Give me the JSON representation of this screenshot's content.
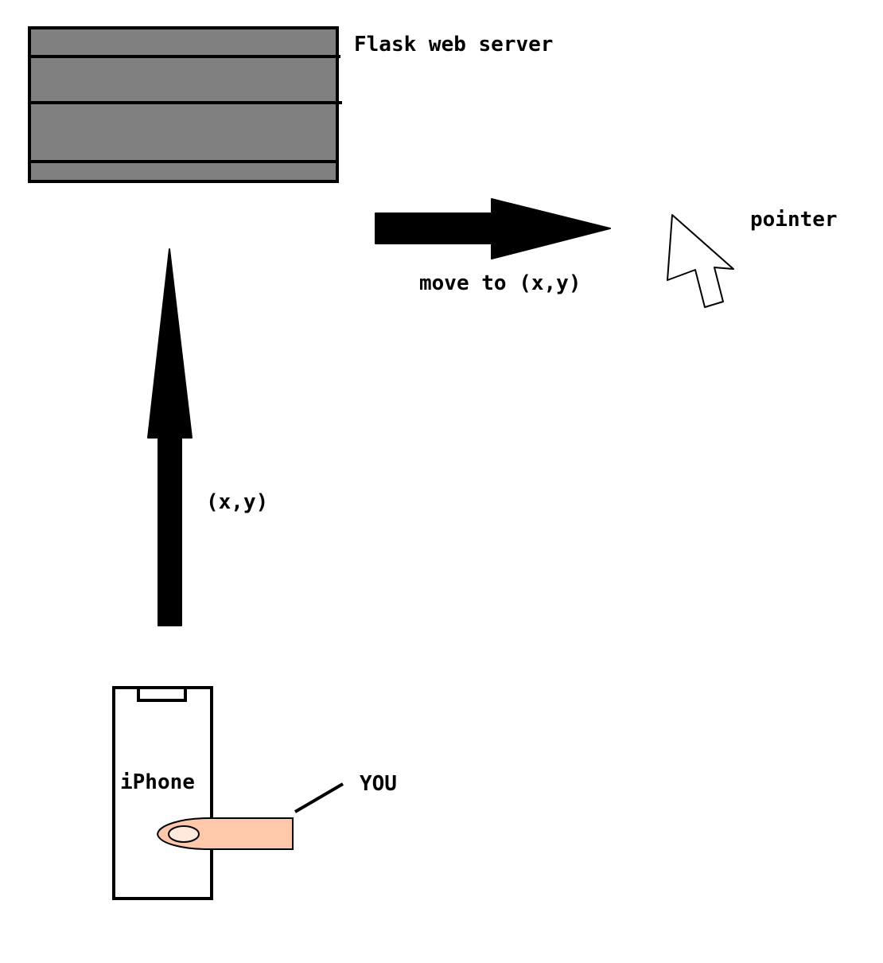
{
  "labels": {
    "server": "Flask web server",
    "pointer": "pointer",
    "move": "move to (x,y)",
    "coords": "(x,y)",
    "phone": "iPhone",
    "you": "YOU"
  },
  "colors": {
    "server_fill": "#808080",
    "finger_fill": "#ffc8aa",
    "stroke": "#000000",
    "background": "#ffffff"
  }
}
